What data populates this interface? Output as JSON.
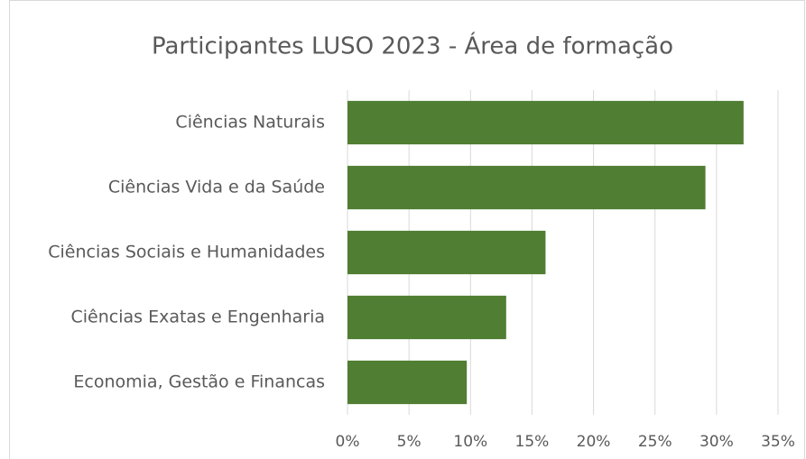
{
  "chart_data": {
    "type": "barh",
    "title": "Participantes LUSO 2023 - Área de formação",
    "categories": [
      "Ciências Naturais",
      "Ciências Vida e da Saúde",
      "Ciências Sociais e Humanidades",
      "Ciências Exatas e Engenharia",
      "Economia, Gestão e Financas"
    ],
    "values": [
      32.2,
      29.1,
      16.1,
      12.9,
      9.7
    ],
    "color": "#507e32",
    "xlim": [
      0,
      35
    ],
    "xticks": [
      {
        "value": 0,
        "label": "0%"
      },
      {
        "value": 5,
        "label": "5%"
      },
      {
        "value": 10,
        "label": "10%"
      },
      {
        "value": 15,
        "label": "15%"
      },
      {
        "value": 20,
        "label": "20%"
      },
      {
        "value": 25,
        "label": "25%"
      },
      {
        "value": 30,
        "label": "30%"
      },
      {
        "value": 35,
        "label": "35%"
      }
    ],
    "grid": true
  }
}
